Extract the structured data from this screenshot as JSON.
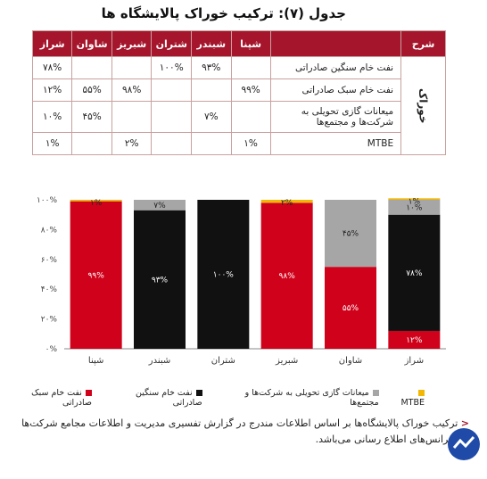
{
  "title": "جدول (۷): ترکیب خوراک پالایشگاه ها",
  "table": {
    "headers": [
      "شرح",
      "",
      "شپنا",
      "شبندر",
      "شتران",
      "شبریز",
      "شاوان",
      "شراز"
    ],
    "category": "خوراک",
    "rows": [
      {
        "desc": "نفت خام سنگین صادراتی",
        "cells": [
          "",
          "۹۳%",
          "۱۰۰%",
          "",
          "",
          "۷۸%"
        ]
      },
      {
        "desc": "نفت خام سبک صادراتی",
        "cells": [
          "۹۹%",
          "",
          "",
          "۹۸%",
          "۵۵%",
          "۱۲%"
        ]
      },
      {
        "desc": "میعانات گازی تحویلی به شرکت‌ها و مجتمع‌ها",
        "cells": [
          "",
          "۷%",
          "",
          "",
          "۴۵%",
          "۱۰%"
        ]
      },
      {
        "desc": "MTBE",
        "cells": [
          "۱%",
          "",
          "",
          "۲%",
          "",
          "۱%"
        ]
      }
    ]
  },
  "chart_data": {
    "type": "bar",
    "stacked": true,
    "categories": [
      "شپنا",
      "شبندر",
      "شتران",
      "شبریز",
      "شاوان",
      "شراز"
    ],
    "series": [
      {
        "name": "نفت خام سبک صادراتی",
        "color": "#d0021b",
        "values": [
          99,
          0,
          0,
          98,
          55,
          12
        ],
        "labels": [
          "۹۹%",
          "",
          "",
          "۹۸%",
          "۵۵%",
          "۱۲%"
        ]
      },
      {
        "name": "نفت خام سنگین صادراتی",
        "color": "#111111",
        "values": [
          0,
          93,
          100,
          0,
          0,
          78
        ],
        "labels": [
          "",
          "۹۳%",
          "۱۰۰%",
          "",
          "",
          "۷۸%"
        ]
      },
      {
        "name": "میعانات گازی تحویلی به شرکت‌ها و مجتمع‌ها",
        "color": "#a6a6a6",
        "values": [
          0,
          7,
          0,
          0,
          45,
          10
        ],
        "labels": [
          "",
          "۷%",
          "",
          "",
          "۴۵%",
          "۱۰%"
        ]
      },
      {
        "name": "MTBE",
        "color": "#f2b705",
        "values": [
          1,
          0,
          0,
          2,
          0,
          1
        ],
        "labels": [
          "۱%",
          "",
          "",
          "۲%",
          "",
          "۱%"
        ]
      }
    ],
    "y_ticks": [
      "۰%",
      "۲۰%",
      "۴۰%",
      "۶۰%",
      "۸۰%",
      "۱۰۰%"
    ],
    "ylim": [
      0,
      100
    ]
  },
  "legend": [
    {
      "label": "MTBE",
      "color": "#f2b705"
    },
    {
      "label": "میعانات گازی تحویلی به شرکت‌ها و مجتمع‌ها",
      "color": "#a6a6a6"
    },
    {
      "label": "نفت خام سنگین صادراتی",
      "color": "#111111"
    },
    {
      "label": "نفت خام سبک صادراتی",
      "color": "#d0021b"
    }
  ],
  "note": "ترکیب خوراک پالایشگاه‌ها بر اساس اطلاعات مندرج در گزارش تفسیری مدیریت و اطلاعات مجامع شرکت‌ها و کنفرانس‌های اطلاع رسانی می‌باشد."
}
